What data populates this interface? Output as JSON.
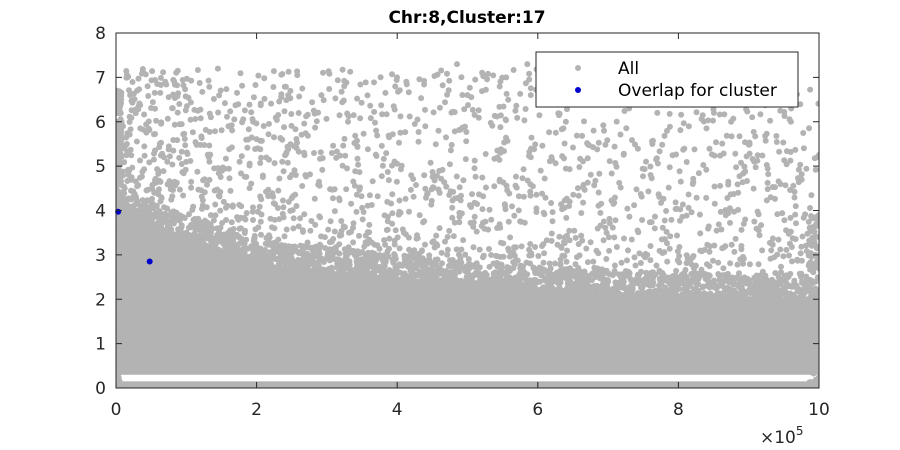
{
  "chart_data": {
    "type": "scatter",
    "title": "Chr:8,Cluster:17",
    "xlabel": "",
    "ylabel": "",
    "xlim": [
      0,
      1000000
    ],
    "ylim": [
      0,
      8
    ],
    "x_ticks": [
      0,
      200000,
      400000,
      600000,
      800000,
      1000000
    ],
    "x_tick_labels": [
      "0",
      "2",
      "4",
      "6",
      "8",
      "10"
    ],
    "x_exponent_label": "×10",
    "x_exponent": "5",
    "y_ticks": [
      0,
      1,
      2,
      3,
      4,
      5,
      6,
      7,
      8
    ],
    "y_tick_labels": [
      "0",
      "1",
      "2",
      "3",
      "4",
      "5",
      "6",
      "7",
      "8"
    ],
    "grid": false,
    "legend_position": "top-right",
    "series": [
      {
        "name": "All",
        "color": "#b3b3b3",
        "description_points": [
          [
            2000,
            6.7
          ],
          [
            5000,
            6.3
          ],
          [
            10000,
            5.9
          ],
          [
            20000,
            6.6
          ],
          [
            30000,
            6.7
          ],
          [
            45000,
            6.8
          ],
          [
            55000,
            6.65
          ],
          [
            63000,
            6.65
          ],
          [
            70000,
            6.9
          ],
          [
            90000,
            6.4
          ],
          [
            135000,
            6.1
          ],
          [
            160000,
            5.9
          ],
          [
            195000,
            6.0
          ],
          [
            235000,
            6.55
          ],
          [
            245000,
            6.6
          ],
          [
            265000,
            6.75
          ],
          [
            330000,
            6.0
          ],
          [
            370000,
            5.8
          ],
          [
            395000,
            6.35
          ],
          [
            425000,
            5.95
          ],
          [
            440000,
            5.9
          ],
          [
            485000,
            7.3
          ],
          [
            500000,
            6.6
          ],
          [
            555000,
            7.0
          ],
          [
            585000,
            7.3
          ],
          [
            590000,
            6.6
          ],
          [
            640000,
            6.0
          ],
          [
            690000,
            6.5
          ],
          [
            710000,
            6.4
          ],
          [
            730000,
            6.3
          ],
          [
            770000,
            6.2
          ],
          [
            815000,
            5.9
          ],
          [
            840000,
            5.85
          ],
          [
            875000,
            6.0
          ],
          [
            905000,
            6.1
          ],
          [
            945000,
            6.25
          ],
          [
            960000,
            6.0
          ],
          [
            1000000,
            5.25
          ],
          [
            995000,
            3.85
          ]
        ],
        "dense_band_upper": [
          [
            0,
            4.3
          ],
          [
            200000,
            3.1
          ],
          [
            400000,
            2.8
          ],
          [
            600000,
            2.55
          ],
          [
            800000,
            2.4
          ],
          [
            1000000,
            2.3
          ]
        ],
        "dense_band_lower": 0.3,
        "baseline_band": [
          0.0,
          0.15
        ]
      },
      {
        "name": "Overlap for cluster",
        "color": "#0000cc",
        "x": [
          3000,
          48000
        ],
        "y": [
          3.97,
          2.85
        ]
      }
    ]
  }
}
